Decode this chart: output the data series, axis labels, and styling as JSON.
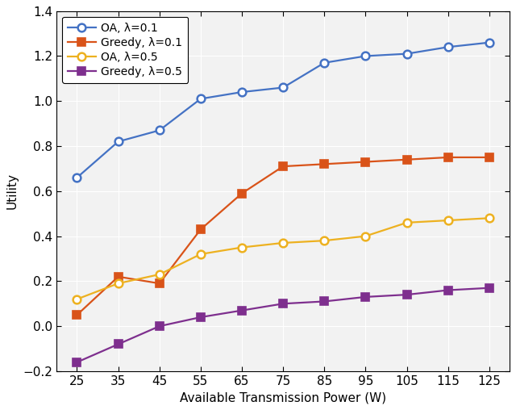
{
  "x": [
    25,
    35,
    45,
    55,
    65,
    75,
    85,
    95,
    105,
    115,
    125
  ],
  "OA_01": [
    0.66,
    0.82,
    0.87,
    1.01,
    1.04,
    1.06,
    1.17,
    1.2,
    1.21,
    1.24,
    1.26
  ],
  "Greedy_01": [
    0.05,
    0.22,
    0.19,
    0.43,
    0.59,
    0.71,
    0.72,
    0.73,
    0.74,
    0.75,
    0.75
  ],
  "OA_05": [
    0.12,
    0.19,
    0.23,
    0.32,
    0.35,
    0.37,
    0.38,
    0.4,
    0.46,
    0.47,
    0.48
  ],
  "Greedy_05": [
    -0.16,
    -0.08,
    0.0,
    0.04,
    0.07,
    0.1,
    0.11,
    0.13,
    0.14,
    0.16,
    0.17
  ],
  "colors": {
    "OA_01": "#4472c4",
    "Greedy_01": "#d95319",
    "OA_05": "#edb120",
    "Greedy_05": "#7e2f8e"
  },
  "labels": {
    "OA_01": "OA, λ=0.1",
    "Greedy_01": "Greedy, λ=0.1",
    "OA_05": "OA, λ=0.5",
    "Greedy_05": "Greedy, λ=0.5"
  },
  "xlabel": "Available Transmission Power (W)",
  "ylabel": "Utility",
  "ylim": [
    -0.2,
    1.4
  ],
  "yticks": [
    -0.2,
    0.0,
    0.2,
    0.4,
    0.6,
    0.8,
    1.0,
    1.2,
    1.4
  ],
  "xlim": [
    20,
    130
  ],
  "xticks": [
    25,
    35,
    45,
    55,
    65,
    75,
    85,
    95,
    105,
    115,
    125
  ],
  "marker_OA": "o",
  "marker_Greedy": "s",
  "linewidth": 1.6,
  "markersize": 7,
  "grid_color": "#d0d0d0",
  "bg_color": "#f2f2f2"
}
